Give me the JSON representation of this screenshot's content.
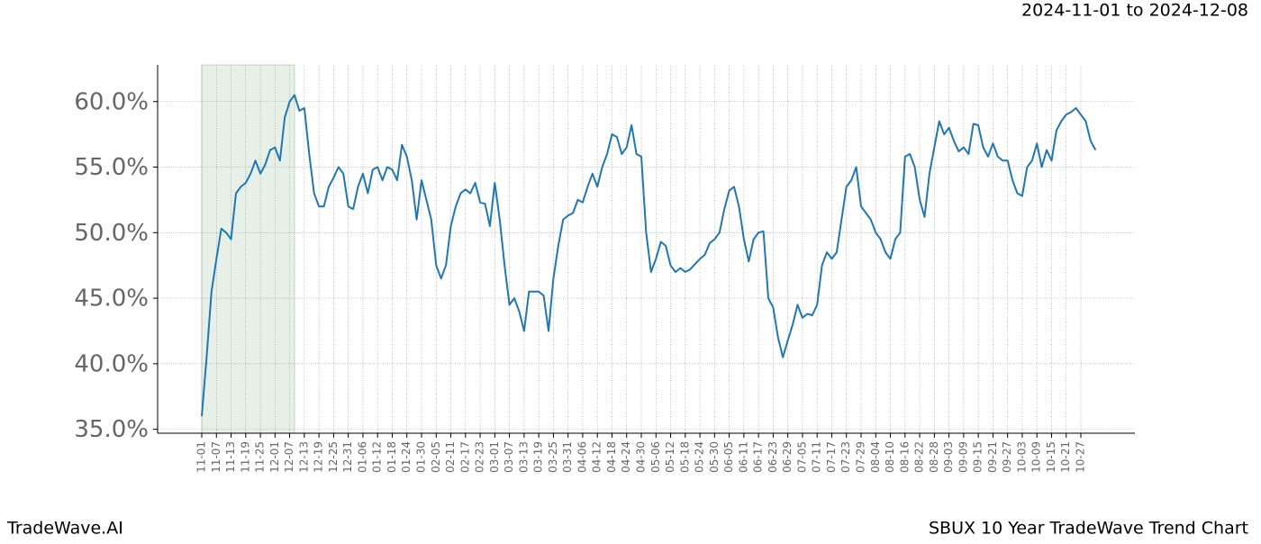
{
  "header": "2024-11-01 to 2024-12-08",
  "footer_left": "TradeWave.AI",
  "footer_right": "SBUX 10 Year TradeWave Trend Chart",
  "chart_data": {
    "type": "line",
    "categories": [
      "11-01",
      null,
      null,
      "11-07",
      null,
      null,
      "11-13",
      null,
      null,
      "11-19",
      null,
      null,
      "11-25",
      null,
      null,
      "12-01",
      null,
      null,
      "12-07",
      null,
      null,
      "12-13",
      null,
      null,
      "12-19",
      null,
      null,
      "12-25",
      null,
      null,
      "12-31",
      null,
      null,
      "01-06",
      null,
      null,
      "01-12",
      null,
      null,
      "01-18",
      null,
      null,
      "01-24",
      null,
      null,
      "01-30",
      null,
      null,
      "02-05",
      null,
      null,
      "02-11",
      null,
      null,
      "02-17",
      null,
      null,
      "02-23",
      null,
      null,
      "03-01",
      null,
      null,
      "03-07",
      null,
      null,
      "03-13",
      null,
      null,
      "03-19",
      null,
      null,
      "03-25",
      null,
      null,
      "03-31",
      null,
      null,
      "04-06",
      null,
      null,
      "04-12",
      null,
      null,
      "04-18",
      null,
      null,
      "04-24",
      null,
      null,
      "04-30",
      null,
      null,
      "05-06",
      null,
      null,
      "05-12",
      null,
      null,
      "05-18",
      null,
      null,
      "05-24",
      null,
      null,
      "05-30",
      null,
      null,
      "06-05",
      null,
      null,
      "06-11",
      null,
      null,
      "06-17",
      null,
      null,
      "06-23",
      null,
      null,
      "06-29",
      null,
      null,
      "07-05",
      null,
      null,
      "07-11",
      null,
      null,
      "07-17",
      null,
      null,
      "07-23",
      null,
      null,
      "07-29",
      null,
      null,
      "08-04",
      null,
      null,
      "08-10",
      null,
      null,
      "08-16",
      null,
      null,
      "08-22",
      null,
      null,
      "08-28",
      null,
      null,
      "09-03",
      null,
      null,
      "09-09",
      null,
      null,
      "09-15",
      null,
      null,
      "09-21",
      null,
      null,
      "09-27",
      null,
      null,
      "10-03",
      null,
      null,
      "10-09",
      null,
      null,
      "10-15",
      null,
      null,
      "10-21",
      null,
      null,
      "10-27",
      null,
      null,
      null
    ],
    "series": [
      {
        "color": "#1f77b4",
        "values": [
          36.0,
          40.5,
          45.5,
          48.0,
          50.3,
          50.0,
          49.5,
          53.0,
          53.5,
          53.8,
          54.5,
          55.5,
          54.5,
          55.2,
          56.3,
          56.5,
          55.5,
          58.8,
          60.0,
          60.5,
          59.3,
          59.5,
          56.0,
          53.0,
          52.0,
          52.0,
          53.5,
          54.2,
          55.0,
          54.5,
          52.0,
          51.8,
          53.5,
          54.5,
          53.0,
          54.8,
          55.0,
          54.0,
          55.0,
          54.8,
          54.0,
          56.7,
          55.8,
          54.0,
          51.0,
          54.0,
          52.5,
          51.0,
          47.5,
          46.5,
          47.5,
          50.5,
          52.0,
          53.0,
          53.3,
          53.0,
          53.8,
          52.3,
          52.2,
          50.5,
          53.8,
          51.0,
          47.5,
          44.5,
          45.0,
          44.0,
          42.5,
          45.5,
          45.5,
          45.5,
          45.2,
          42.5,
          46.5,
          49.0,
          51.0,
          51.3,
          51.5,
          52.5,
          52.3,
          53.5,
          54.5,
          53.5,
          55.0,
          56.0,
          57.5,
          57.3,
          56.0,
          56.5,
          58.2,
          56.0,
          55.8,
          50.0,
          47.0,
          48.0,
          49.3,
          49.0,
          47.5,
          47.0,
          47.3,
          47.0,
          47.2,
          47.6,
          48.0,
          48.3,
          49.2,
          49.5,
          50.0,
          51.8,
          53.2,
          53.5,
          52.0,
          49.5,
          47.8,
          49.5,
          50.0,
          50.1,
          45.0,
          44.3,
          42.0,
          40.5,
          41.8,
          43.0,
          44.5,
          43.5,
          43.8,
          43.7,
          44.5,
          47.5,
          48.5,
          48.0,
          48.5,
          51.0,
          53.5,
          54.0,
          55.0,
          52.0,
          51.5,
          51.0,
          50.0,
          49.5,
          48.5,
          48.0,
          49.5,
          50.0,
          55.8,
          56.0,
          55.0,
          52.5,
          51.2,
          54.5,
          56.5,
          58.5,
          57.5,
          58.0,
          57.0,
          56.2,
          56.5,
          56.0,
          58.3,
          58.2,
          56.5,
          55.8,
          56.8,
          55.8,
          55.5,
          55.5,
          54.0,
          53.0,
          52.8,
          55.0,
          55.5,
          56.8,
          55.0,
          56.3,
          55.5,
          57.8,
          58.5,
          59.0,
          59.2,
          59.5,
          59.0,
          58.5,
          57.0,
          56.3
        ]
      }
    ],
    "ylim": [
      34.7,
      62.8
    ],
    "yticks": [
      {
        "value": 35,
        "label": "35.0%"
      },
      {
        "value": 40,
        "label": "40.0%"
      },
      {
        "value": 45,
        "label": "45.0%"
      },
      {
        "value": 50,
        "label": "50.0%"
      },
      {
        "value": 55,
        "label": "55.0%"
      },
      {
        "value": 60,
        "label": "60.0%"
      }
    ],
    "grid": true,
    "highlight": {
      "from": "11-01",
      "to": "12-07",
      "color": "#e6f0e6"
    }
  }
}
